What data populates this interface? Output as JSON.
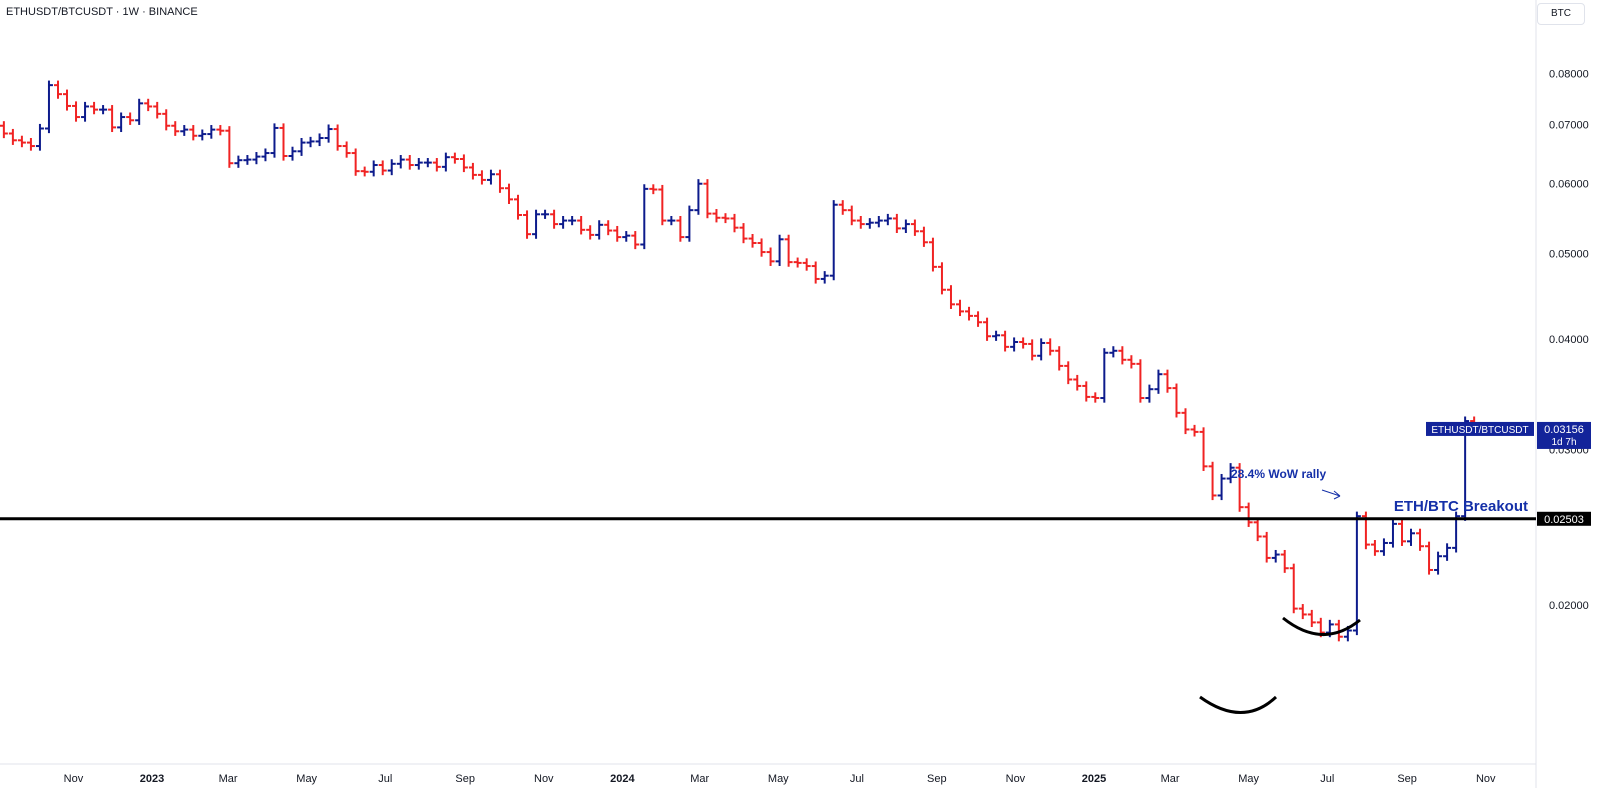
{
  "header": {
    "title": "ETHUSDT/BTCUSDT · 1W · BINANCE",
    "unit_label": "BTC"
  },
  "colors": {
    "up": "#0d1b8c",
    "down": "#f02323",
    "breakout_line": "#000000",
    "annotation_text": "#1530a8",
    "price_tag_bg": "#13249a",
    "level_tag_bg": "#000000"
  },
  "chart_data": {
    "type": "ohlc",
    "scale": "log",
    "ylim": [
      0.0132,
      0.0915
    ],
    "y_ticks": [
      {
        "value": 0.08,
        "label": "0.08000"
      },
      {
        "value": 0.07,
        "label": "0.07000"
      },
      {
        "value": 0.06,
        "label": "0.06000"
      },
      {
        "value": 0.05,
        "label": "0.05000"
      },
      {
        "value": 0.04,
        "label": "0.04000"
      },
      {
        "value": 0.03,
        "label": "0.03000"
      },
      {
        "value": 0.02,
        "label": "0.02000"
      }
    ],
    "x_ticks": [
      {
        "date": "2022-11-01",
        "label": "Nov",
        "year": false
      },
      {
        "date": "2023-01-01",
        "label": "2023",
        "year": true
      },
      {
        "date": "2023-03-01",
        "label": "Mar",
        "year": false
      },
      {
        "date": "2023-05-01",
        "label": "May",
        "year": false
      },
      {
        "date": "2023-07-01",
        "label": "Jul",
        "year": false
      },
      {
        "date": "2023-09-01",
        "label": "Sep",
        "year": false
      },
      {
        "date": "2023-11-01",
        "label": "Nov",
        "year": false
      },
      {
        "date": "2024-01-01",
        "label": "2024",
        "year": true
      },
      {
        "date": "2024-03-01",
        "label": "Mar",
        "year": false
      },
      {
        "date": "2024-05-01",
        "label": "May",
        "year": false
      },
      {
        "date": "2024-07-01",
        "label": "Jul",
        "year": false
      },
      {
        "date": "2024-09-01",
        "label": "Sep",
        "year": false
      },
      {
        "date": "2024-11-01",
        "label": "Nov",
        "year": false
      },
      {
        "date": "2025-01-01",
        "label": "2025",
        "year": true
      },
      {
        "date": "2025-03-01",
        "label": "Mar",
        "year": false
      },
      {
        "date": "2025-05-01",
        "label": "May",
        "year": false
      },
      {
        "date": "2025-07-01",
        "label": "Jul",
        "year": false
      },
      {
        "date": "2025-09-01",
        "label": "Sep",
        "year": false
      },
      {
        "date": "2025-11-01",
        "label": "Nov",
        "year": false
      }
    ],
    "xlim": [
      "2022-09-05",
      "2025-12-10"
    ],
    "closes": [
      0.0684,
      0.0672,
      0.0668,
      0.0662,
      0.0693,
      0.0776,
      0.0758,
      0.0735,
      0.0714,
      0.0734,
      0.0728,
      0.0728,
      0.0695,
      0.0714,
      0.0708,
      0.074,
      0.0734,
      0.072,
      0.0698,
      0.0688,
      0.0691,
      0.068,
      0.0683,
      0.0691,
      0.0689,
      0.0633,
      0.0638,
      0.0639,
      0.0644,
      0.065,
      0.0694,
      0.0645,
      0.0653,
      0.0668,
      0.067,
      0.0676,
      0.0692,
      0.0662,
      0.065,
      0.062,
      0.0619,
      0.063,
      0.0621,
      0.0632,
      0.0639,
      0.063,
      0.0634,
      0.0634,
      0.0627,
      0.0643,
      0.064,
      0.0626,
      0.0614,
      0.0606,
      0.0615,
      0.0593,
      0.0576,
      0.0553,
      0.0526,
      0.0554,
      0.0554,
      0.054,
      0.0545,
      0.0545,
      0.0532,
      0.0525,
      0.0539,
      0.0531,
      0.0522,
      0.0524,
      0.0512,
      0.0592,
      0.0591,
      0.0545,
      0.0545,
      0.0522,
      0.056,
      0.06,
      0.0555,
      0.0549,
      0.0548,
      0.0535,
      0.052,
      0.0514,
      0.0502,
      0.049,
      0.0519,
      0.0489,
      0.0488,
      0.0484,
      0.0468,
      0.0472,
      0.0568,
      0.056,
      0.0545,
      0.054,
      0.0542,
      0.0545,
      0.0548,
      0.0534,
      0.054,
      0.053,
      0.0515,
      0.0483,
      0.0455,
      0.0438,
      0.043,
      0.0425,
      0.0418,
      0.0403,
      0.0404,
      0.0392,
      0.0397,
      0.0395,
      0.0383,
      0.0396,
      0.0388,
      0.0373,
      0.036,
      0.0354,
      0.0344,
      0.0343,
      0.0386,
      0.0388,
      0.0379,
      0.0375,
      0.0343,
      0.0351,
      0.0365,
      0.0352,
      0.033,
      0.0316,
      0.0314,
      0.0287,
      0.0266,
      0.0278,
      0.0286,
      0.0258,
      0.0248,
      0.0239,
      0.0226,
      0.0228,
      0.022,
      0.0198,
      0.0195,
      0.0191,
      0.0186,
      0.019,
      0.0184,
      0.0187,
      0.0252,
      0.0234,
      0.023,
      0.0235,
      0.0247,
      0.0236,
      0.0241,
      0.0233,
      0.0219,
      0.0227,
      0.0232,
      0.0252,
      0.0323,
      0.0316
    ],
    "opens": [
      0.0698,
      0.0684,
      0.0672,
      0.0668,
      0.0662,
      0.0693,
      0.0776,
      0.0758,
      0.0735,
      0.0714,
      0.0734,
      0.0728,
      0.0728,
      0.0695,
      0.0714,
      0.0708,
      0.074,
      0.0734,
      0.072,
      0.0698,
      0.0688,
      0.0691,
      0.068,
      0.0683,
      0.0691,
      0.0689,
      0.0633,
      0.0638,
      0.0639,
      0.0644,
      0.065,
      0.0694,
      0.0645,
      0.0653,
      0.0668,
      0.067,
      0.0676,
      0.0692,
      0.0662,
      0.065,
      0.062,
      0.0619,
      0.063,
      0.0621,
      0.0632,
      0.0639,
      0.063,
      0.0634,
      0.0634,
      0.0627,
      0.0643,
      0.064,
      0.0626,
      0.0614,
      0.0606,
      0.0615,
      0.0593,
      0.0576,
      0.0553,
      0.0526,
      0.0554,
      0.0554,
      0.054,
      0.0545,
      0.0545,
      0.0532,
      0.0525,
      0.0539,
      0.0531,
      0.0522,
      0.0524,
      0.0512,
      0.0592,
      0.0591,
      0.0545,
      0.0545,
      0.0522,
      0.056,
      0.06,
      0.0555,
      0.0549,
      0.0548,
      0.0535,
      0.052,
      0.0514,
      0.0502,
      0.049,
      0.0519,
      0.0489,
      0.0488,
      0.0484,
      0.0468,
      0.0472,
      0.0568,
      0.056,
      0.0545,
      0.054,
      0.0542,
      0.0545,
      0.0548,
      0.0534,
      0.054,
      0.053,
      0.0515,
      0.0483,
      0.0455,
      0.0438,
      0.043,
      0.0425,
      0.0418,
      0.0403,
      0.0404,
      0.0392,
      0.0397,
      0.0395,
      0.0383,
      0.0396,
      0.0388,
      0.0373,
      0.036,
      0.0354,
      0.0344,
      0.0343,
      0.0386,
      0.0388,
      0.0379,
      0.0375,
      0.0343,
      0.0351,
      0.0365,
      0.0352,
      0.033,
      0.0316,
      0.0314,
      0.0287,
      0.0266,
      0.0278,
      0.0286,
      0.0258,
      0.0248,
      0.0239,
      0.0226,
      0.0228,
      0.022,
      0.0198,
      0.0195,
      0.0191,
      0.0186,
      0.019,
      0.0184,
      0.0187,
      0.0252,
      0.0234,
      0.023,
      0.0235,
      0.0247,
      0.0236,
      0.0241,
      0.0233,
      0.0219,
      0.0227,
      0.0232,
      0.0252,
      0.0323
    ],
    "breakout_level": 0.02503,
    "breakout_label": "ETH/BTC Breakout",
    "level_tag": "0.02503",
    "current": {
      "symbol": "ETHUSDT/BTCUSDT",
      "value": 0.03156,
      "value_label": "0.03156",
      "countdown": "1d 7h"
    },
    "annotation": "28.4% WoW rally"
  }
}
